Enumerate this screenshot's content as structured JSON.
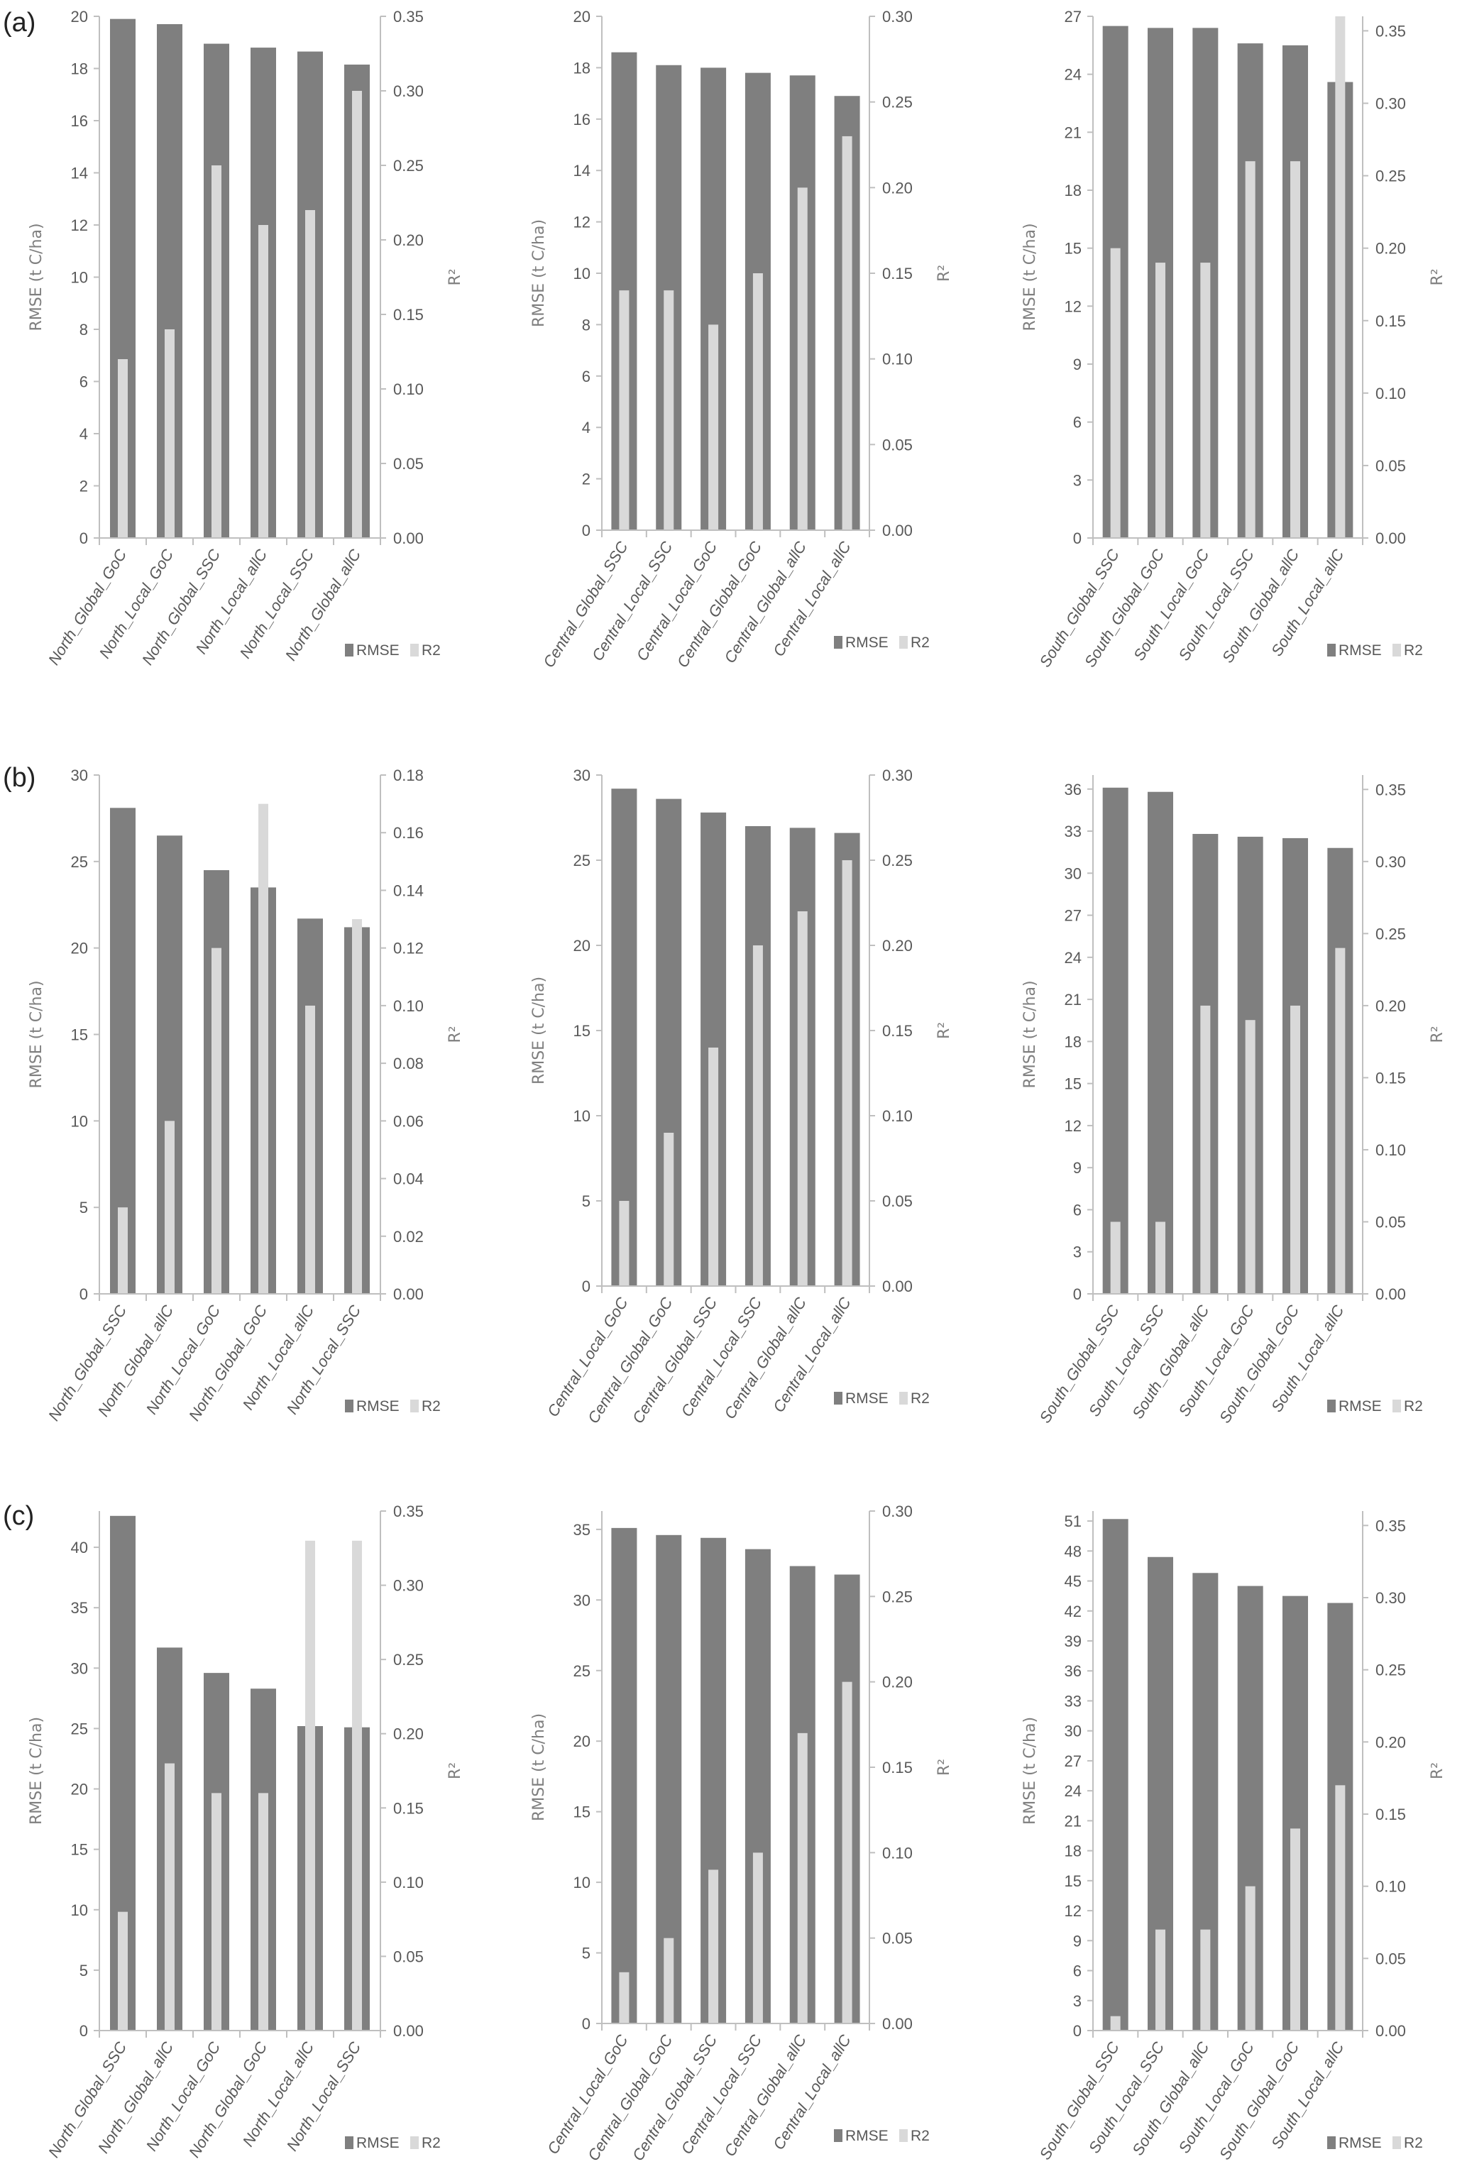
{
  "panel_labels": [
    "(a)",
    "(b)",
    "(c)"
  ],
  "colors": {
    "rmse": "#7f7f7f",
    "r2": "#d9d9d9",
    "axis": "#bfbfbf",
    "text": "#595959"
  },
  "legend": [
    "RMSE",
    "R2"
  ],
  "chart_data": [
    {
      "type": "bar",
      "panel": "(a)",
      "categories": [
        "North_Global_GoC",
        "North_Local_GoC",
        "North_Global_SSC",
        "North_Local_allC",
        "North_Local_SSC",
        "North_Global_allC"
      ],
      "series": [
        {
          "name": "RMSE",
          "axis": "left",
          "values": [
            19.9,
            19.7,
            18.95,
            18.8,
            18.65,
            18.15
          ]
        },
        {
          "name": "R2",
          "axis": "right",
          "values": [
            0.12,
            0.14,
            0.25,
            0.21,
            0.22,
            0.3
          ]
        }
      ],
      "ylabel": "RMSE (t C/ha)",
      "y2label": "R²",
      "ylim": [
        0,
        20
      ],
      "y2lim": [
        0,
        0.35
      ],
      "yticks": [
        "0",
        "2",
        "4",
        "6",
        "8",
        "10",
        "12",
        "14",
        "16",
        "18",
        "20"
      ],
      "y2ticks": [
        "0.00",
        "0.05",
        "0.10",
        "0.15",
        "0.20",
        "0.25",
        "0.30",
        "0.35"
      ],
      "legend_position": "bottom-right"
    },
    {
      "type": "bar",
      "panel": "(a)",
      "categories": [
        "Central_Global_SSC",
        "Central_Local_SSC",
        "Central_Local_GoC",
        "Central_Global_GoC",
        "Central_Global_allC",
        "Central_Local_allC"
      ],
      "series": [
        {
          "name": "RMSE",
          "axis": "left",
          "values": [
            18.6,
            18.1,
            18.0,
            17.8,
            17.7,
            16.9
          ]
        },
        {
          "name": "R2",
          "axis": "right",
          "values": [
            0.14,
            0.14,
            0.12,
            0.15,
            0.2,
            0.23
          ]
        }
      ],
      "ylabel": "RMSE (t C/ha)",
      "y2label": "R²",
      "ylim": [
        0,
        20
      ],
      "y2lim": [
        0,
        0.3
      ],
      "yticks": [
        "0",
        "2",
        "4",
        "6",
        "8",
        "10",
        "12",
        "14",
        "16",
        "18",
        "20"
      ],
      "y2ticks": [
        "0.00",
        "0.05",
        "0.10",
        "0.15",
        "0.20",
        "0.25",
        "0.30"
      ],
      "legend_position": "bottom-right"
    },
    {
      "type": "bar",
      "panel": "(a)",
      "categories": [
        "South_Global_SSC",
        "South_Global_GoC",
        "South_Local_GoC",
        "South_Local_SSC",
        "South_Global_allC",
        "South_Local_allC"
      ],
      "series": [
        {
          "name": "RMSE",
          "axis": "left",
          "values": [
            26.5,
            26.4,
            26.4,
            25.6,
            25.5,
            23.6
          ]
        },
        {
          "name": "R2",
          "axis": "right",
          "values": [
            0.2,
            0.19,
            0.19,
            0.26,
            0.26,
            0.36
          ]
        }
      ],
      "ylabel": "RMSE (t C/ha)",
      "y2label": "R²",
      "ylim": [
        0,
        27
      ],
      "y2lim": [
        0,
        0.36
      ],
      "yticks": [
        "0",
        "3",
        "6",
        "9",
        "12",
        "15",
        "18",
        "21",
        "24",
        "27"
      ],
      "y2ticks": [
        "0.00",
        "0.05",
        "0.10",
        "0.15",
        "0.20",
        "0.25",
        "0.30",
        "0.35"
      ],
      "legend_position": "bottom-right"
    },
    {
      "type": "bar",
      "panel": "(b)",
      "categories": [
        "North_Global_SSC",
        "North_Global_allC",
        "North_Local_GoC",
        "North_Global_GoC",
        "North_Local_allC",
        "North_Local_SSC"
      ],
      "series": [
        {
          "name": "RMSE",
          "axis": "left",
          "values": [
            28.1,
            26.5,
            24.5,
            23.5,
            21.7,
            21.2
          ]
        },
        {
          "name": "R2",
          "axis": "right",
          "values": [
            0.03,
            0.06,
            0.12,
            0.17,
            0.1,
            0.13
          ]
        }
      ],
      "ylabel": "RMSE (t C/ha)",
      "y2label": "R²",
      "ylim": [
        0,
        30
      ],
      "y2lim": [
        0,
        0.18
      ],
      "yticks": [
        "0",
        "5",
        "10",
        "15",
        "20",
        "25",
        "30"
      ],
      "y2ticks": [
        "0.00",
        "0.02",
        "0.04",
        "0.06",
        "0.08",
        "0.10",
        "0.12",
        "0.14",
        "0.16",
        "0.18"
      ],
      "legend_position": "bottom-right"
    },
    {
      "type": "bar",
      "panel": "(b)",
      "categories": [
        "Central_Local_GoC",
        "Central_Global_GoC",
        "Central_Global_SSC",
        "Central_Local_SSC",
        "Central_Global_allC",
        "Central_Local_allC"
      ],
      "series": [
        {
          "name": "RMSE",
          "axis": "left",
          "values": [
            29.2,
            28.6,
            27.8,
            27.0,
            26.9,
            26.6
          ]
        },
        {
          "name": "R2",
          "axis": "right",
          "values": [
            0.05,
            0.09,
            0.14,
            0.2,
            0.22,
            0.25
          ]
        }
      ],
      "ylabel": "RMSE (t C/ha)",
      "y2label": "R²",
      "ylim": [
        0,
        30
      ],
      "y2lim": [
        0,
        0.3
      ],
      "yticks": [
        "0",
        "5",
        "10",
        "15",
        "20",
        "25",
        "30"
      ],
      "y2ticks": [
        "0.00",
        "0.05",
        "0.10",
        "0.15",
        "0.20",
        "0.25",
        "0.30"
      ],
      "legend_position": "bottom-right"
    },
    {
      "type": "bar",
      "panel": "(b)",
      "categories": [
        "South_Global_SSC",
        "South_Local_SSC",
        "South_Global_allC",
        "South_Local_GoC",
        "South_Global_GoC",
        "South_Local_allC"
      ],
      "series": [
        {
          "name": "RMSE",
          "axis": "left",
          "values": [
            36.1,
            35.8,
            32.8,
            32.6,
            32.5,
            31.8
          ]
        },
        {
          "name": "R2",
          "axis": "right",
          "values": [
            0.05,
            0.05,
            0.2,
            0.19,
            0.2,
            0.24
          ]
        }
      ],
      "ylabel": "RMSE (t C/ha)",
      "y2label": "R²",
      "ylim": [
        0,
        37
      ],
      "y2lim": [
        0,
        0.36
      ],
      "yticks": [
        "0",
        "3",
        "6",
        "9",
        "12",
        "15",
        "18",
        "21",
        "24",
        "27",
        "30",
        "33",
        "36"
      ],
      "y2ticks": [
        "0.00",
        "0.05",
        "0.10",
        "0.15",
        "0.20",
        "0.25",
        "0.30",
        "0.35"
      ],
      "legend_position": "bottom-right"
    },
    {
      "type": "bar",
      "panel": "(c)",
      "categories": [
        "North_Global_SSC",
        "North_Global_allC",
        "North_Local_GoC",
        "North_Global_GoC",
        "North_Local_allC",
        "North_Local_SSC"
      ],
      "series": [
        {
          "name": "RMSE",
          "axis": "left",
          "values": [
            42.6,
            31.7,
            29.6,
            28.3,
            25.2,
            25.1
          ]
        },
        {
          "name": "R2",
          "axis": "right",
          "values": [
            0.08,
            0.18,
            0.16,
            0.16,
            0.33,
            0.33
          ]
        }
      ],
      "ylabel": "RMSE (t C/ha)",
      "y2label": "R²",
      "ylim": [
        0,
        43
      ],
      "y2lim": [
        0,
        0.35
      ],
      "yticks": [
        "0",
        "5",
        "10",
        "15",
        "20",
        "25",
        "30",
        "35",
        "40"
      ],
      "y2ticks": [
        "0.00",
        "0.05",
        "0.10",
        "0.15",
        "0.20",
        "0.25",
        "0.30",
        "0.35"
      ],
      "legend_position": "bottom-right"
    },
    {
      "type": "bar",
      "panel": "(c)",
      "categories": [
        "Central_Local_GoC",
        "Central_Global_GoC",
        "Central_Global_SSC",
        "Central_Local_SSC",
        "Central_Global_allC",
        "Central_Local_allC"
      ],
      "series": [
        {
          "name": "RMSE",
          "axis": "left",
          "values": [
            35.1,
            34.6,
            34.4,
            33.6,
            32.4,
            31.8
          ]
        },
        {
          "name": "R2",
          "axis": "right",
          "values": [
            0.03,
            0.05,
            0.09,
            0.1,
            0.17,
            0.2
          ]
        }
      ],
      "ylabel": "RMSE (t C/ha)",
      "y2label": "R²",
      "ylim": [
        0,
        36.3
      ],
      "y2lim": [
        0,
        0.3
      ],
      "yticks": [
        "0",
        "5",
        "10",
        "15",
        "20",
        "25",
        "30",
        "35"
      ],
      "y2ticks": [
        "0.00",
        "0.05",
        "0.10",
        "0.15",
        "0.20",
        "0.25",
        "0.30"
      ],
      "legend_position": "bottom-right"
    },
    {
      "type": "bar",
      "panel": "(c)",
      "categories": [
        "South_Global_SSC",
        "South_Local_SSC",
        "South_Global_allC",
        "South_Local_GoC",
        "South_Global_GoC",
        "South_Local_allC"
      ],
      "series": [
        {
          "name": "RMSE",
          "axis": "left",
          "values": [
            51.2,
            47.4,
            45.8,
            44.5,
            43.5,
            42.8
          ]
        },
        {
          "name": "R2",
          "axis": "right",
          "values": [
            0.01,
            0.07,
            0.07,
            0.1,
            0.14,
            0.17
          ]
        }
      ],
      "ylabel": "RMSE (t C/ha)",
      "y2label": "R²",
      "ylim": [
        0,
        52
      ],
      "y2lim": [
        0,
        0.36
      ],
      "yticks": [
        "0",
        "3",
        "6",
        "9",
        "12",
        "15",
        "18",
        "21",
        "24",
        "27",
        "30",
        "33",
        "36",
        "39",
        "42",
        "45",
        "48",
        "51"
      ],
      "y2ticks": [
        "0.00",
        "0.05",
        "0.10",
        "0.15",
        "0.20",
        "0.25",
        "0.30",
        "0.35"
      ],
      "legend_position": "bottom-right"
    }
  ]
}
